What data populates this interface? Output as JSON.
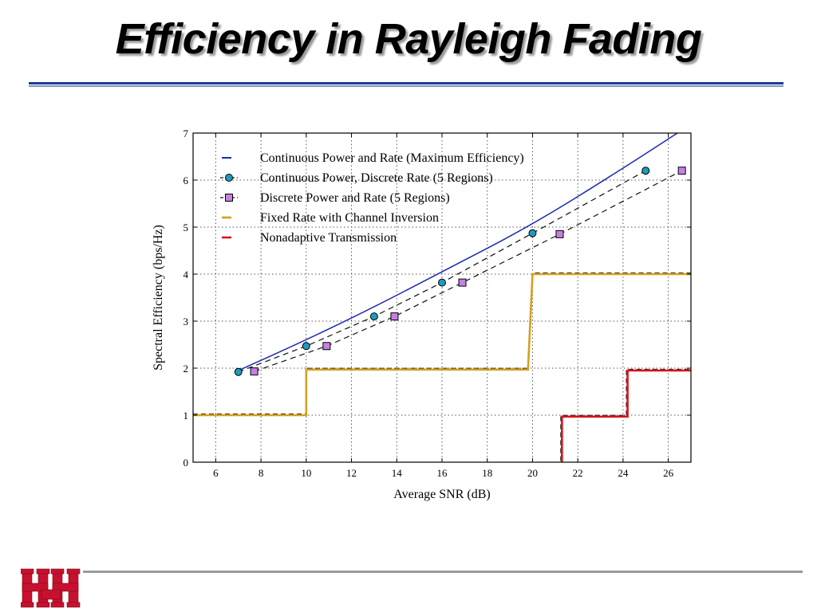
{
  "slide": {
    "title": "Efficiency in Rayleigh Fading"
  },
  "colors": {
    "max": "#1a2bb0",
    "discrete_rate": "#111111",
    "discrete_power": "#111111",
    "marker_circle": "#1e9bbf",
    "marker_square": "#c77fe6",
    "inversion": "#d4a020",
    "nonadaptive": "#d8141c",
    "logo_red": "#c8102e"
  },
  "chart_data": {
    "type": "line",
    "xlabel": "Average SNR (dB)",
    "ylabel": "Spectral Efficiency (bps/Hz)",
    "xlim": [
      5,
      27
    ],
    "ylim": [
      0,
      7
    ],
    "xticks": [
      6,
      8,
      10,
      12,
      14,
      16,
      18,
      20,
      22,
      24,
      26
    ],
    "yticks": [
      0,
      1,
      2,
      3,
      4,
      5,
      6,
      7
    ],
    "grid": true,
    "legend_position": "top-left",
    "series": [
      {
        "name": "Continuous Power and Rate (Maximum Efficiency)",
        "style": "solid",
        "x": [
          7,
          10,
          13,
          16,
          20,
          24,
          26.4
        ],
        "y": [
          1.95,
          2.6,
          3.3,
          4.05,
          5.05,
          6.25,
          7.0
        ]
      },
      {
        "name": "Continuous Power, Discrete Rate (5 Regions)",
        "style": "dashed",
        "marker": "circle",
        "x": [
          7,
          10,
          13,
          16,
          20,
          25
        ],
        "y": [
          1.92,
          2.47,
          3.1,
          3.82,
          4.87,
          6.2
        ]
      },
      {
        "name": "Discrete Power and Rate (5 Regions)",
        "style": "dashed",
        "marker": "square",
        "x": [
          7.7,
          10.9,
          13.9,
          16.9,
          21.2,
          26.6
        ],
        "y": [
          1.93,
          2.47,
          3.1,
          3.82,
          4.85,
          6.2
        ]
      },
      {
        "name": "Fixed Rate with Channel Inversion",
        "style": "step",
        "x": [
          5,
          10,
          10,
          19.8,
          20,
          27
        ],
        "y": [
          1,
          1,
          1.97,
          1.97,
          4.0,
          4.0
        ]
      },
      {
        "name": "Nonadaptive Transmission",
        "style": "step",
        "x": [
          21.3,
          21.3,
          24.2,
          24.2,
          27
        ],
        "y": [
          0,
          0.97,
          0.97,
          1.95,
          1.95
        ]
      }
    ]
  }
}
